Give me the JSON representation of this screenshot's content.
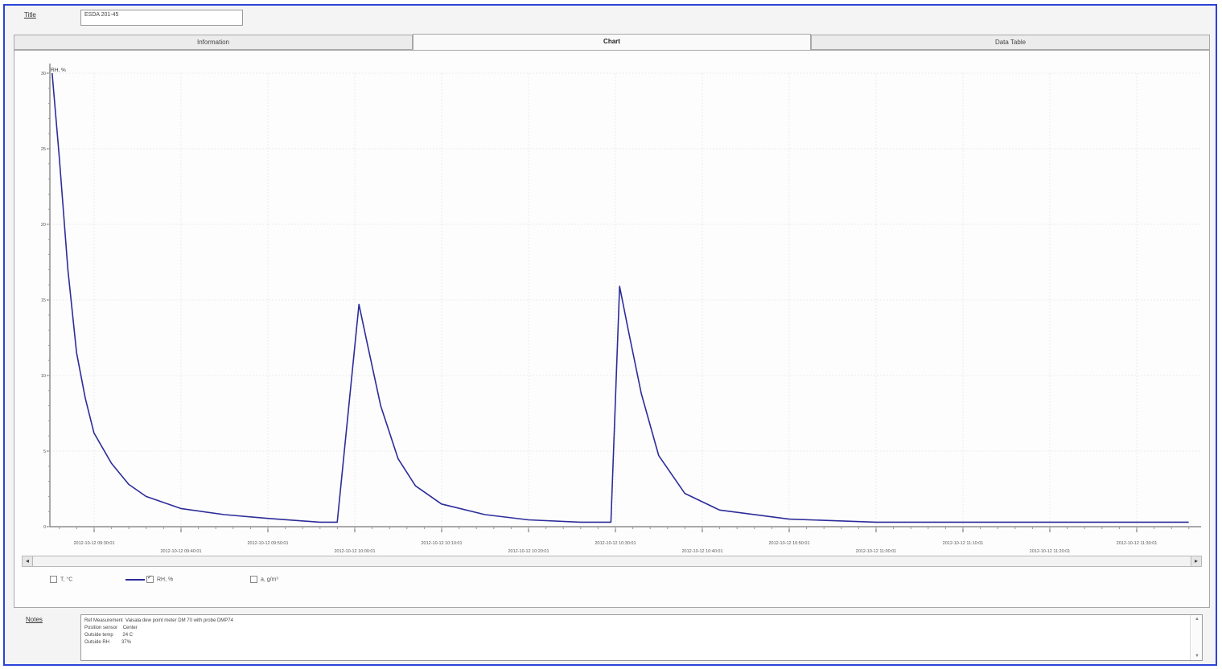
{
  "header": {
    "title_label": "Title",
    "title_value": "ESDA 201-45"
  },
  "tabs": [
    {
      "label": "Information",
      "active": false
    },
    {
      "label": "Chart",
      "active": true
    },
    {
      "label": "Data Table",
      "active": false
    }
  ],
  "chart_data": {
    "type": "line",
    "ylabel": "RH, %",
    "ylim": [
      0,
      30
    ],
    "yticks": [
      "0",
      "5",
      "10",
      "15",
      "20",
      "25",
      "30"
    ],
    "x_tick_labels": [
      "2012-10-12 09:30:01",
      "2012-10-12 09:40:01",
      "2012-10-12 09:50:01",
      "2012-10-12 10:00:01",
      "2012-10-12 10:10:01",
      "2012-10-12 10:20:01",
      "2012-10-12 10:30:01",
      "2012-10-12 10:40:01",
      "2012-10-12 10:50:01",
      "2012-10-12 11:00:01",
      "2012-10-12 11:10:01",
      "2012-10-12 11:20:01",
      "2012-10-12 11:30:01"
    ],
    "grid": true,
    "series": [
      {
        "name": "RH, %",
        "color": "#2c2c9a",
        "points": [
          {
            "x": "2012-10-12 09:25:11",
            "y": 30.0
          },
          {
            "x": "2012-10-12 09:26:00",
            "y": 24.5
          },
          {
            "x": "2012-10-12 09:27:00",
            "y": 17.0
          },
          {
            "x": "2012-10-12 09:28:00",
            "y": 11.5
          },
          {
            "x": "2012-10-12 09:29:00",
            "y": 8.5
          },
          {
            "x": "2012-10-12 09:30:00",
            "y": 6.2
          },
          {
            "x": "2012-10-12 09:32:00",
            "y": 4.2
          },
          {
            "x": "2012-10-12 09:34:00",
            "y": 2.8
          },
          {
            "x": "2012-10-12 09:36:00",
            "y": 2.0
          },
          {
            "x": "2012-10-12 09:40:00",
            "y": 1.2
          },
          {
            "x": "2012-10-12 09:45:00",
            "y": 0.8
          },
          {
            "x": "2012-10-12 09:50:00",
            "y": 0.55
          },
          {
            "x": "2012-10-12 09:56:00",
            "y": 0.3
          },
          {
            "x": "2012-10-12 09:58:00",
            "y": 0.3
          },
          {
            "x": "2012-10-12 10:00:30",
            "y": 14.7
          },
          {
            "x": "2012-10-12 10:01:30",
            "y": 12.0
          },
          {
            "x": "2012-10-12 10:03:00",
            "y": 8.0
          },
          {
            "x": "2012-10-12 10:05:00",
            "y": 4.5
          },
          {
            "x": "2012-10-12 10:07:00",
            "y": 2.7
          },
          {
            "x": "2012-10-12 10:10:00",
            "y": 1.5
          },
          {
            "x": "2012-10-12 10:15:00",
            "y": 0.8
          },
          {
            "x": "2012-10-12 10:20:00",
            "y": 0.45
          },
          {
            "x": "2012-10-12 10:26:00",
            "y": 0.3
          },
          {
            "x": "2012-10-12 10:29:30",
            "y": 0.3
          },
          {
            "x": "2012-10-12 10:30:30",
            "y": 15.9
          },
          {
            "x": "2012-10-12 10:31:30",
            "y": 13.0
          },
          {
            "x": "2012-10-12 10:33:00",
            "y": 8.8
          },
          {
            "x": "2012-10-12 10:35:00",
            "y": 4.7
          },
          {
            "x": "2012-10-12 10:38:00",
            "y": 2.2
          },
          {
            "x": "2012-10-12 10:42:00",
            "y": 1.1
          },
          {
            "x": "2012-10-12 10:50:00",
            "y": 0.5
          },
          {
            "x": "2012-10-12 11:00:00",
            "y": 0.3
          },
          {
            "x": "2012-10-12 11:36:00",
            "y": 0.3
          }
        ]
      }
    ]
  },
  "legend": [
    {
      "label": "T, °C",
      "checked": false,
      "swatch": false
    },
    {
      "label": "RH, %",
      "checked": true,
      "swatch": true,
      "color": "#2c2c9a"
    },
    {
      "label": "a, g/m³",
      "checked": false,
      "swatch": false
    }
  ],
  "scrollbar": {
    "left": "◂",
    "right": "▸"
  },
  "notes": {
    "label": "Notes",
    "lines": [
      "Ref Measurement  Vaisala dew point meter DM 70 with probe DMP74",
      "Position sensor    Center",
      "Outside temp       24 C",
      "Outside RH         37%"
    ]
  }
}
